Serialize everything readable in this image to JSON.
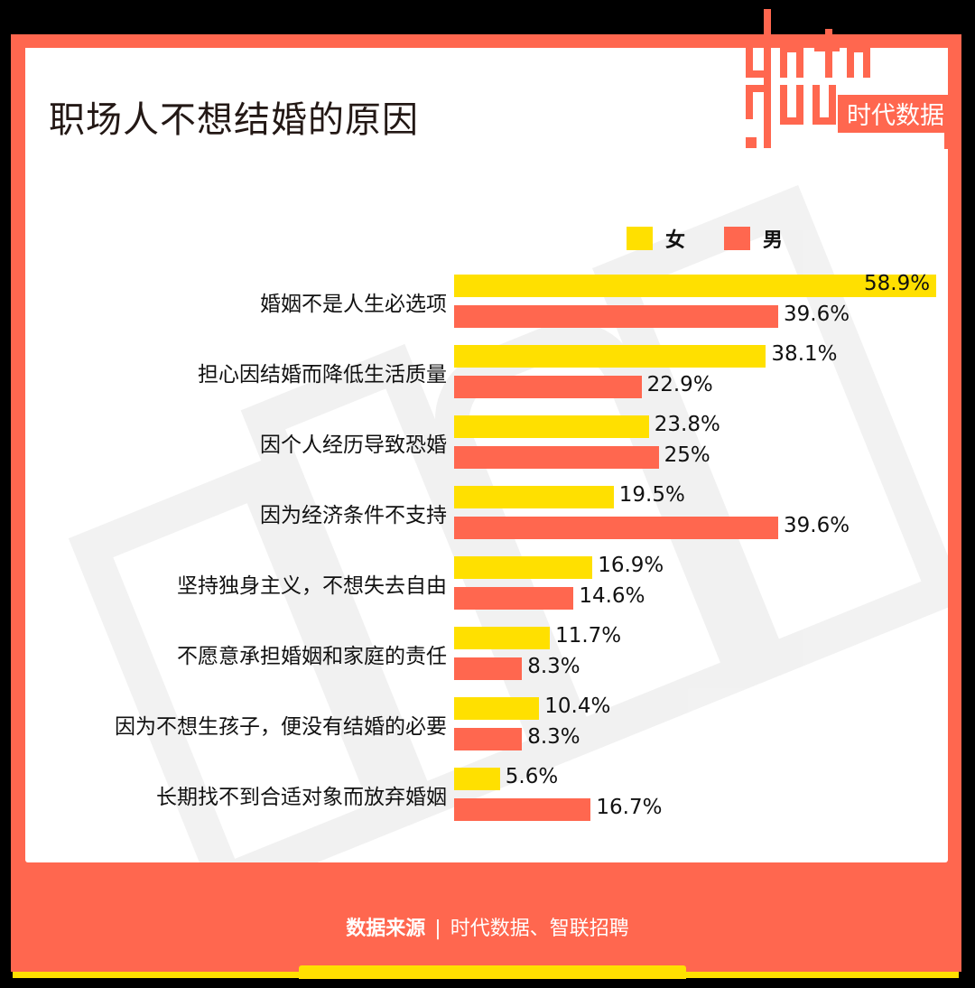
{
  "title": "职场人不想结婚的原因",
  "logo": {
    "text_top": "data",
    "text_bottom": "goo",
    "brand_cn": "时代数据"
  },
  "legend": [
    {
      "label": "女",
      "color": "#ffe000"
    },
    {
      "label": "男",
      "color": "#ff674f"
    }
  ],
  "footer": {
    "source_label": "数据来源",
    "separator": "|",
    "source_value": "时代数据、智联招聘"
  },
  "chart_data": {
    "type": "bar",
    "orientation": "horizontal",
    "title": "职场人不想结婚的原因",
    "xlabel": "",
    "ylabel": "",
    "grid": false,
    "legend_position": "top-right",
    "unit": "%",
    "categories": [
      "婚姻不是人生必选项",
      "担心因结婚而降低生活质量",
      "因个人经历导致恐婚",
      "因为经济条件不支持",
      "坚持独身主义，不想失去自由",
      "不愿意承担婚姻和家庭的责任",
      "因为不想生孩子，便没有结婚的必要",
      "长期找不到合适对象而放弃婚姻"
    ],
    "series": [
      {
        "name": "女",
        "color": "#ffe000",
        "values": [
          58.9,
          38.1,
          23.8,
          19.5,
          16.9,
          11.7,
          10.4,
          5.6
        ],
        "labels": [
          "58.9%",
          "38.1%",
          "23.8%",
          "19.5%",
          "16.9%",
          "11.7%",
          "10.4%",
          "5.6%"
        ]
      },
      {
        "name": "男",
        "color": "#ff674f",
        "values": [
          39.6,
          22.9,
          25,
          39.6,
          14.6,
          8.3,
          8.3,
          16.7
        ],
        "labels": [
          "39.6%",
          "22.9%",
          "25%",
          "39.6%",
          "14.6%",
          "8.3%",
          "8.3%",
          "16.7%"
        ]
      }
    ]
  }
}
